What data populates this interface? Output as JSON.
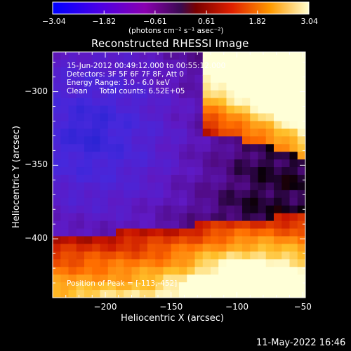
{
  "chart_data": {
    "type": "heatmap",
    "title": "Reconstructed RHESSI Image",
    "xlabel": "Heliocentric X (arcsec)",
    "ylabel": "Heliocentric Y (arcsec)",
    "xlim": [
      -240,
      -48
    ],
    "ylim": [
      -440,
      -273
    ],
    "x_ticks": [
      -200,
      -150,
      -100,
      -50
    ],
    "x_tick_labels": [
      "−200",
      "−150",
      "−100",
      "−50"
    ],
    "y_ticks": [
      -300,
      -350,
      -400
    ],
    "y_tick_labels": [
      "−300",
      "−350",
      "−400"
    ],
    "colorbar": {
      "min": -3.04,
      "max": 3.04,
      "ticks": [
        -3.04,
        -1.82,
        -0.61,
        0.61,
        1.82,
        3.04
      ],
      "tick_labels": [
        "−3.04",
        "−1.82",
        "−0.61",
        "0.61",
        "1.82",
        "3.04"
      ],
      "units": "(photons cm⁻² s⁻¹ asec⁻²)"
    },
    "annotations": [
      "15-Jun-2012 00:49:12.000 to 00:55:12.000",
      "Detectors: 3F 5F 6F 7F 8F, Att 0",
      "Energy Range: 3.0 - 6.0 keV",
      "Clean     Total counts: 6.52E+05"
    ],
    "peak_label": "Position of Peak = [-113,-452]",
    "grid": false
  },
  "footer": {
    "date": "11-May-2022 16:46"
  }
}
